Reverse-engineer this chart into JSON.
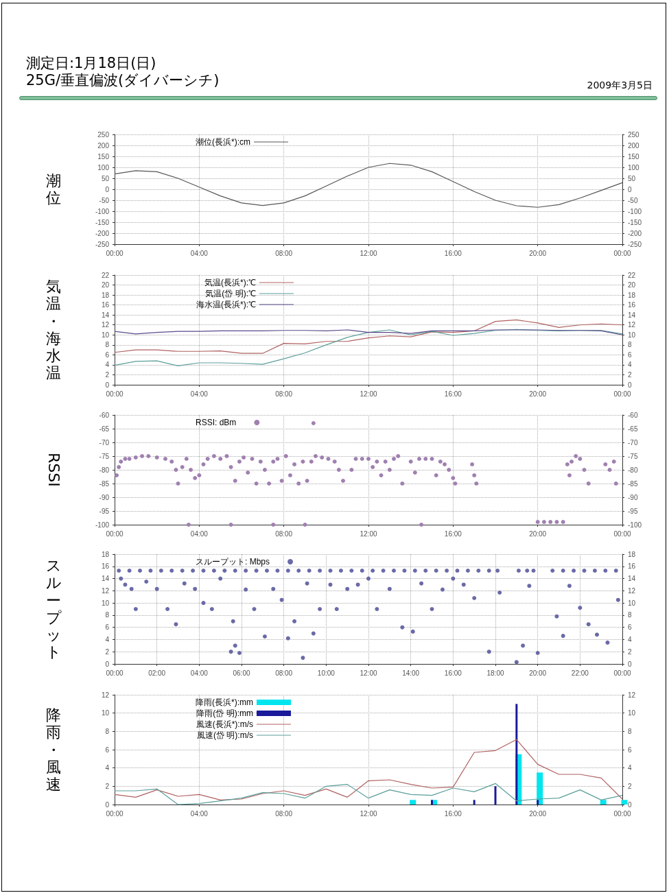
{
  "chart_data": [
    {
      "type": "line",
      "title": "測定日:1月18日(日)",
      "subtitle": "25G/垂直偏波(ダイバーシチ)",
      "annotations": [
        "2009年3月5日"
      ],
      "ylabel": "潮位",
      "x": [
        0,
        1,
        2,
        3,
        4,
        5,
        6,
        7,
        8,
        9,
        10,
        11,
        12,
        13,
        14,
        15,
        16,
        17,
        18,
        19,
        20,
        21,
        22,
        23,
        24
      ],
      "series": [
        {
          "name": "潮位(長浜*):cm",
          "color": "#555555",
          "values": [
            70,
            85,
            80,
            50,
            10,
            -30,
            -62,
            -74,
            -62,
            -30,
            15,
            60,
            100,
            118,
            110,
            80,
            35,
            -10,
            -50,
            -75,
            -82,
            -70,
            -40,
            -5,
            30
          ]
        }
      ],
      "xlim": [
        0,
        24
      ],
      "xticks": [
        {
          "value": 0,
          "label": "00:00"
        },
        {
          "value": 4,
          "label": "04:00"
        },
        {
          "value": 8,
          "label": "08:00"
        },
        {
          "value": 12,
          "label": "12:00"
        },
        {
          "value": 16,
          "label": "16:00"
        },
        {
          "value": 20,
          "label": "20:00"
        },
        {
          "value": 24,
          "label": "00:00"
        }
      ],
      "ylim": [
        -250,
        250
      ],
      "yticks": [
        -250,
        -200,
        -150,
        -100,
        -50,
        0,
        50,
        100,
        150,
        200,
        250
      ],
      "y2lim": [
        -250,
        250
      ],
      "y2ticks": [
        -250,
        -200,
        -150,
        -100,
        -50,
        0,
        50,
        100,
        150,
        200,
        250
      ],
      "grid": true,
      "legend": "top"
    },
    {
      "type": "line",
      "ylabel": "気温・海水温",
      "x": [
        0,
        1,
        2,
        3,
        4,
        5,
        6,
        7,
        8,
        9,
        10,
        11,
        12,
        13,
        14,
        15,
        16,
        17,
        18,
        19,
        20,
        21,
        22,
        23,
        24
      ],
      "series": [
        {
          "name": "気温(長浜*):℃",
          "color": "#b06060",
          "values": [
            6.5,
            7,
            7,
            6.7,
            6.7,
            6.8,
            6.3,
            6.3,
            8.3,
            8.2,
            8.7,
            8.7,
            9.4,
            9.8,
            9.6,
            10.6,
            10.5,
            10.8,
            12.7,
            13,
            12.4,
            11.5,
            12,
            12.2,
            12
          ]
        },
        {
          "name": "気温(岱 明):℃",
          "color": "#5a9e9a",
          "values": [
            3.9,
            4.7,
            4.8,
            3.8,
            4.4,
            4.4,
            4.3,
            4.1,
            5.2,
            6.4,
            8,
            9.5,
            10.5,
            11,
            10,
            10.7,
            9.9,
            10.3,
            10.9,
            11.1,
            10.9,
            10.8,
            10.9,
            10.9,
            10.2
          ]
        },
        {
          "name": "海水温(長浜*):℃",
          "color": "#5a4a8a",
          "values": [
            10.7,
            10.2,
            10.5,
            10.7,
            10.7,
            10.8,
            10.8,
            10.8,
            10.9,
            10.9,
            10.8,
            11,
            10.5,
            10.5,
            10.3,
            10.8,
            10.8,
            10.8,
            11,
            11,
            11,
            10.9,
            10.9,
            10.8,
            10
          ]
        }
      ],
      "xlim": [
        0,
        24
      ],
      "xticks": [
        {
          "value": 0,
          "label": "00:00"
        },
        {
          "value": 4,
          "label": "04:00"
        },
        {
          "value": 8,
          "label": "08:00"
        },
        {
          "value": 12,
          "label": "12:00"
        },
        {
          "value": 16,
          "label": "16:00"
        },
        {
          "value": 20,
          "label": "20:00"
        },
        {
          "value": 24,
          "label": "00:00"
        }
      ],
      "ylim": [
        0,
        22
      ],
      "yticks": [
        0,
        2,
        4,
        6,
        8,
        10,
        12,
        14,
        16,
        18,
        20,
        22
      ],
      "y2lim": [
        0,
        22
      ],
      "y2ticks": [
        0,
        2,
        4,
        6,
        8,
        10,
        12,
        14,
        16,
        18,
        20,
        22
      ],
      "grid": true,
      "legend": "top"
    },
    {
      "type": "scatter",
      "ylabel": "RSSI",
      "marker": "circle",
      "series": [
        {
          "name": "RSSI: dBm",
          "color": "#a080b0",
          "x": [
            0.1,
            0.2,
            0.3,
            0.5,
            0.7,
            1.0,
            1.3,
            1.6,
            2.0,
            2.4,
            2.7,
            2.9,
            3.0,
            3.2,
            3.4,
            3.6,
            3.8,
            4.0,
            4.2,
            4.4,
            4.7,
            5.0,
            5.3,
            5.5,
            5.7,
            5.9,
            6.1,
            6.3,
            6.5,
            6.7,
            6.9,
            7.1,
            7.3,
            7.5,
            7.7,
            7.9,
            8.1,
            8.3,
            8.5,
            8.7,
            8.9,
            9.1,
            9.3,
            9.4,
            9.5,
            9.8,
            10.1,
            10.4,
            10.6,
            10.8,
            11.2,
            11.4,
            11.7,
            12.0,
            12.2,
            12.4,
            12.6,
            12.8,
            13.0,
            13.2,
            13.4,
            13.6,
            14.0,
            14.2,
            14.4,
            14.7,
            15.0,
            15.2,
            15.4,
            15.6,
            15.8,
            16.0,
            16.1,
            16.9,
            17.0,
            17.1,
            21.4,
            21.5,
            21.6,
            21.8,
            22.0,
            22.2,
            22.4,
            23.2,
            23.4,
            23.6,
            23.7,
            3.5,
            5.5,
            7.5,
            9.0,
            14.5,
            20.0,
            20.3,
            20.6,
            20.9,
            21.2
          ],
          "values": [
            -82,
            -79,
            -77,
            -76,
            -76,
            -75.5,
            -75,
            -75,
            -75.5,
            -76,
            -77,
            -80,
            -85,
            -79,
            -76,
            -80,
            -83,
            -82,
            -78,
            -76,
            -75,
            -76,
            -75,
            -79,
            -84,
            -77,
            -75.5,
            -81,
            -76,
            -85,
            -77,
            -80,
            -85,
            -77,
            -76,
            -84,
            -75,
            -82,
            -78,
            -85,
            -77,
            -84,
            -77,
            -63,
            -75,
            -75.5,
            -76,
            -77,
            -80,
            -84,
            -80,
            -76,
            -76,
            -76,
            -79,
            -77,
            -82,
            -77,
            -80,
            -76,
            -75,
            -85,
            -77,
            -81,
            -76,
            -76,
            -76,
            -82,
            -77,
            -78,
            -80,
            -83,
            -85,
            -78,
            -82,
            -85,
            -78,
            -82,
            -77,
            -75,
            -76,
            -80,
            -85,
            -78,
            -80,
            -77,
            -85,
            -100,
            -100,
            -100,
            -100,
            -100,
            -99,
            -99,
            -99,
            -99,
            -99
          ]
        }
      ],
      "xlim": [
        0,
        24
      ],
      "xticks": [
        {
          "value": 0,
          "label": "00:00"
        },
        {
          "value": 4,
          "label": "04:00"
        },
        {
          "value": 8,
          "label": "08:00"
        },
        {
          "value": 12,
          "label": "12:00"
        },
        {
          "value": 16,
          "label": "16:00"
        },
        {
          "value": 20,
          "label": "20:00"
        },
        {
          "value": 24,
          "label": "00:00"
        }
      ],
      "ylim": [
        -100,
        -60
      ],
      "yticks": [
        -100,
        -95,
        -90,
        -85,
        -80,
        -75,
        -70,
        -65,
        -60
      ],
      "y2lim": [
        -100,
        -60
      ],
      "y2ticks": [
        -100,
        -95,
        -90,
        -85,
        -80,
        -75,
        -70,
        -65,
        -60
      ],
      "grid": true,
      "legend": "top"
    },
    {
      "type": "scatter",
      "ylabel": "スループット",
      "marker": "circle",
      "series": [
        {
          "name": "スループット: Mbps",
          "color": "#6a6aa8",
          "x": [
            0.2,
            0.7,
            1.2,
            1.7,
            2.2,
            2.7,
            3.2,
            3.7,
            4.2,
            4.7,
            5.2,
            5.7,
            6.2,
            6.7,
            7.2,
            7.7,
            8.2,
            8.7,
            9.2,
            9.7,
            10.2,
            10.7,
            11.2,
            11.7,
            12.2,
            12.7,
            13.2,
            13.7,
            14.2,
            14.7,
            15.2,
            15.7,
            16.2,
            16.7,
            17.2,
            17.7,
            18.1,
            19.1,
            19.5,
            19.8,
            20.7,
            21.2,
            21.7,
            22.2,
            22.7,
            23.2,
            23.7,
            0.3,
            0.5,
            0.8,
            1.0,
            1.5,
            2.0,
            2.5,
            2.9,
            3.3,
            3.8,
            4.2,
            4.6,
            5.0,
            5.5,
            5.6,
            5.7,
            5.9,
            6.2,
            6.6,
            7.1,
            7.5,
            7.9,
            8.2,
            8.5,
            8.9,
            9.1,
            9.4,
            9.7,
            10.2,
            10.5,
            11.0,
            11.5,
            12.0,
            12.4,
            13.0,
            13.6,
            14.1,
            14.5,
            15.0,
            15.5,
            16.0,
            16.5,
            17.0,
            17.7,
            18.2,
            19.0,
            19.3,
            19.6,
            20.0,
            20.9,
            21.2,
            21.5,
            22.0,
            22.4,
            22.8,
            23.3,
            23.8
          ],
          "values": [
            15.3,
            15.3,
            15.3,
            15.3,
            15.3,
            15.3,
            15.3,
            15.3,
            15.3,
            15.3,
            15.3,
            15.3,
            15.3,
            15.3,
            15.3,
            15.3,
            15.3,
            15.3,
            15.3,
            15.3,
            15.3,
            15.3,
            15.3,
            15.3,
            15.3,
            15.3,
            15.3,
            15.3,
            15.3,
            15.3,
            15.3,
            15.3,
            15.3,
            15.3,
            15.3,
            15.3,
            15.3,
            15.3,
            15.3,
            15.3,
            15.3,
            15.3,
            15.3,
            15.3,
            15.3,
            15.3,
            15.3,
            14,
            13,
            12.3,
            9,
            13.5,
            12.3,
            9,
            6.5,
            13.2,
            12.3,
            10,
            9,
            14,
            2,
            7,
            3,
            1.8,
            12.2,
            9,
            4.5,
            12.3,
            10.5,
            4.2,
            7,
            1,
            13.2,
            5,
            9,
            13,
            9,
            12.3,
            13,
            14,
            9,
            12.3,
            6,
            5.3,
            13.2,
            9,
            12.2,
            14,
            13,
            10.8,
            2,
            11.7,
            0.3,
            3,
            12.8,
            1.8,
            7.8,
            4.6,
            12.8,
            9.2,
            6.5,
            4.8,
            3.5,
            10.5
          ]
        }
      ],
      "xlim": [
        0,
        24
      ],
      "xticks": [
        {
          "value": 0,
          "label": "00:00"
        },
        {
          "value": 2,
          "label": "02:00"
        },
        {
          "value": 4,
          "label": "04:00"
        },
        {
          "value": 6,
          "label": "06:00"
        },
        {
          "value": 8,
          "label": "08:00"
        },
        {
          "value": 10,
          "label": "10:00"
        },
        {
          "value": 12,
          "label": "12:00"
        },
        {
          "value": 14,
          "label": "14:00"
        },
        {
          "value": 16,
          "label": "16:00"
        },
        {
          "value": 18,
          "label": "18:00"
        },
        {
          "value": 20,
          "label": "20:00"
        },
        {
          "value": 22,
          "label": "22:00"
        },
        {
          "value": 24,
          "label": "00:00"
        }
      ],
      "ylim": [
        0,
        18
      ],
      "yticks": [
        0,
        2,
        4,
        6,
        8,
        10,
        12,
        14,
        16,
        18
      ],
      "y2lim": [
        0,
        18
      ],
      "y2ticks": [
        0,
        2,
        4,
        6,
        8,
        10,
        12,
        14,
        16,
        18
      ],
      "grid": true,
      "legend": "top"
    },
    {
      "type": "line",
      "ylabel": "降雨・風速",
      "x": [
        0,
        1,
        2,
        3,
        4,
        5,
        6,
        7,
        8,
        9,
        10,
        11,
        12,
        13,
        14,
        15,
        16,
        17,
        18,
        19,
        20,
        21,
        22,
        23,
        24
      ],
      "series": [
        {
          "name": "降雨(長浜*):mm",
          "type": "bar",
          "color": "#00e5ee",
          "x": [
            14,
            15,
            19,
            20,
            23,
            24
          ],
          "values": [
            0.5,
            0.5,
            5.5,
            3.5,
            0.5,
            0.5
          ]
        },
        {
          "name": "降雨(岱 明):mm",
          "type": "bar",
          "color": "#1a1a9a",
          "x": [
            15,
            17,
            18,
            19,
            20
          ],
          "values": [
            0.5,
            0.5,
            2,
            11,
            0.5
          ]
        },
        {
          "name": "風速(長浜*):m/s",
          "color": "#b06060",
          "values": [
            1.1,
            0.8,
            1.6,
            0.9,
            1.1,
            0.5,
            0.6,
            1.2,
            1.5,
            1.0,
            1.7,
            0.8,
            2.6,
            2.7,
            2.2,
            1.8,
            1.9,
            5.7,
            5.9,
            7.1,
            4.4,
            3.3,
            3.3,
            2.9,
            0.6
          ]
        },
        {
          "name": "風速(岱 明):m/s",
          "color": "#5a9e9a",
          "values": [
            1.5,
            1.5,
            1.7,
            0,
            0.1,
            0.4,
            0.7,
            1.3,
            1.2,
            0.7,
            2.0,
            2.2,
            0.7,
            1.6,
            1.1,
            1.0,
            1.8,
            1.4,
            2.3,
            0.4,
            0.6,
            0.7,
            1.6,
            0.5,
            1.0
          ]
        }
      ],
      "xlim": [
        0,
        24
      ],
      "xticks": [
        {
          "value": 0,
          "label": "00:00"
        },
        {
          "value": 4,
          "label": "04:00"
        },
        {
          "value": 8,
          "label": "08:00"
        },
        {
          "value": 12,
          "label": "12:00"
        },
        {
          "value": 16,
          "label": "16:00"
        },
        {
          "value": 20,
          "label": "20:00"
        },
        {
          "value": 24,
          "label": "00:00"
        }
      ],
      "ylim": [
        0,
        12
      ],
      "yticks": [
        0,
        2,
        4,
        6,
        8,
        10,
        12
      ],
      "y2lim": [
        0,
        12
      ],
      "y2ticks": [
        0,
        2,
        4,
        6,
        8,
        10,
        12
      ],
      "grid": true,
      "legend": "top"
    }
  ]
}
